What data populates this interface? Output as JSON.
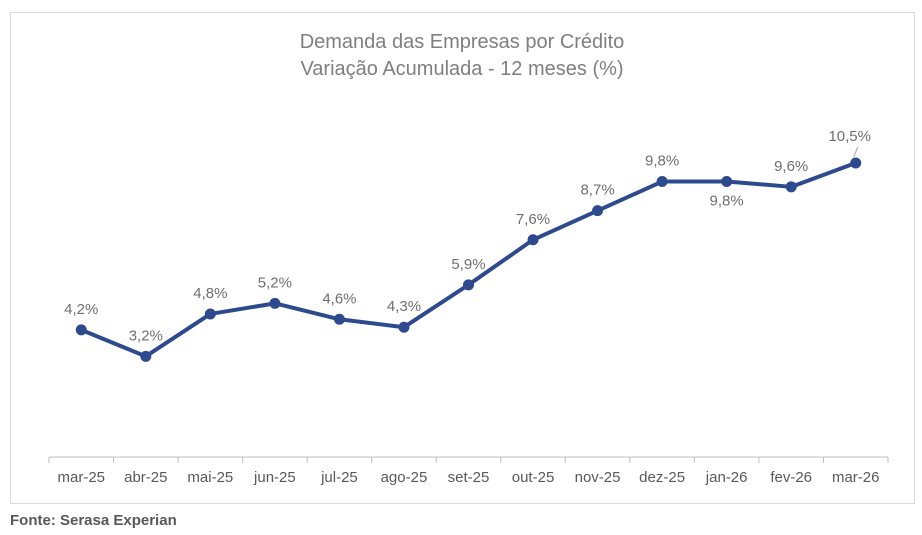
{
  "chart_data": {
    "type": "line",
    "title": "Demanda das Empresas por Crédito",
    "subtitle": "Variação Acumulada - 12 meses (%)",
    "xlabel": "",
    "ylabel": "",
    "categories": [
      "mar-25",
      "abr-25",
      "mai-25",
      "jun-25",
      "jul-25",
      "ago-25",
      "set-25",
      "out-25",
      "nov-25",
      "dez-25",
      "jan-26",
      "fev-26",
      "mar-26"
    ],
    "series": [
      {
        "values": [
          4.2,
          3.2,
          4.8,
          5.2,
          4.6,
          4.3,
          5.9,
          7.6,
          8.7,
          9.8,
          9.8,
          9.6,
          10.5
        ],
        "labels": [
          "4,2%",
          "3,2%",
          "4,8%",
          "5,2%",
          "4,6%",
          "4,3%",
          "5,9%",
          "7,6%",
          "8,7%",
          "9,8%",
          "9,8%",
          "9,6%",
          "10,5%"
        ],
        "color": "#2e4a8f"
      }
    ],
    "label_positions": [
      "above",
      "above",
      "above",
      "above",
      "above",
      "above",
      "above",
      "above",
      "above",
      "above",
      "below",
      "above",
      "above"
    ],
    "ylim": [
      -0.6,
      12.5
    ],
    "grid": false,
    "legend": "none"
  },
  "source": "Fonte: Serasa Experian",
  "colors": {
    "line": "#2e4a8f",
    "axis": "#bfbfbf",
    "title": "#7f7f7f",
    "labels": "#6f6f6f"
  }
}
